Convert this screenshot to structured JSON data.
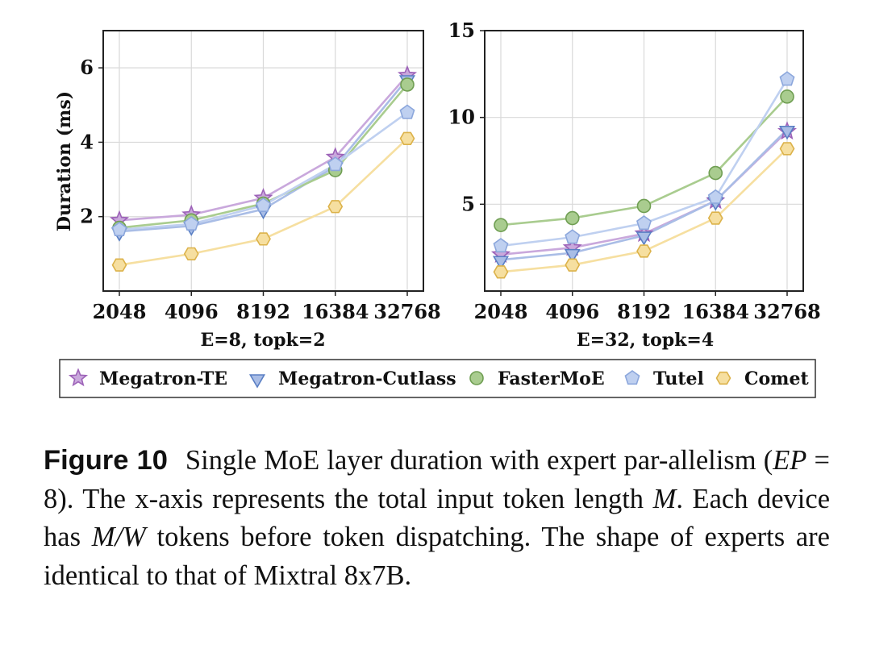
{
  "legend": {
    "entries": [
      {
        "name": "Megatron-TE",
        "marker": "star",
        "stroke": "#9d62b8",
        "fill": "#c9a8dc"
      },
      {
        "name": "Megatron-Cutlass",
        "marker": "triangle-down",
        "stroke": "#5a7fc4",
        "fill": "#a9bde6"
      },
      {
        "name": "FasterMoE",
        "marker": "circle",
        "stroke": "#6f9e52",
        "fill": "#a9cc8f"
      },
      {
        "name": "Tutel",
        "marker": "pentagon",
        "stroke": "#8ca7dc",
        "fill": "#bfd0f0"
      },
      {
        "name": "Comet",
        "marker": "hexagon",
        "stroke": "#dcb24a",
        "fill": "#f6dfa0"
      }
    ]
  },
  "chart_data": [
    {
      "type": "line",
      "title": "",
      "xlabel": "E=8, topk=2",
      "ylabel": "Duration (ms)",
      "categories": [
        "2048",
        "4096",
        "8192",
        "16384",
        "32768"
      ],
      "ylim": [
        0,
        7
      ],
      "yticks": [
        "2",
        "4",
        "6"
      ],
      "ytick_values": [
        2,
        4,
        6
      ],
      "series": [
        {
          "name": "Megatron-TE",
          "values": [
            1.9,
            2.05,
            2.5,
            3.6,
            5.8
          ]
        },
        {
          "name": "Megatron-Cutlass",
          "values": [
            1.6,
            1.75,
            2.2,
            3.35,
            5.7
          ]
        },
        {
          "name": "FasterMoE",
          "values": [
            1.7,
            1.9,
            2.35,
            3.25,
            5.55
          ]
        },
        {
          "name": "Tutel",
          "values": [
            1.65,
            1.8,
            2.3,
            3.4,
            4.8
          ]
        },
        {
          "name": "Comet",
          "values": [
            0.7,
            1.0,
            1.4,
            2.27,
            4.1
          ]
        }
      ]
    },
    {
      "type": "line",
      "title": "",
      "xlabel": "E=32, topk=4",
      "ylabel": "",
      "categories": [
        "2048",
        "4096",
        "8192",
        "16384",
        "32768"
      ],
      "ylim": [
        0,
        15
      ],
      "yticks": [
        "5",
        "10",
        "15"
      ],
      "ytick_values": [
        5,
        10,
        15
      ],
      "series": [
        {
          "name": "Megatron-TE",
          "values": [
            2.1,
            2.5,
            3.3,
            5.2,
            9.2
          ]
        },
        {
          "name": "Megatron-Cutlass",
          "values": [
            1.8,
            2.2,
            3.2,
            5.2,
            9.3
          ]
        },
        {
          "name": "FasterMoE",
          "values": [
            3.8,
            4.2,
            4.9,
            6.8,
            11.2
          ]
        },
        {
          "name": "Tutel",
          "values": [
            2.6,
            3.1,
            3.9,
            5.4,
            12.2
          ]
        },
        {
          "name": "Comet",
          "values": [
            1.1,
            1.5,
            2.3,
            4.2,
            8.2
          ]
        }
      ]
    }
  ],
  "caption": {
    "label": "Figure 10",
    "t1": "Single MoE layer duration with expert par-allelism (",
    "m1": "EP",
    "t2": " = 8). The x-axis represents the total input token length ",
    "m2": "M",
    "t3": ". Each device has ",
    "m3": "M/W",
    "t4": " tokens before token dispatching. The shape of experts are identical to that of Mixtral 8x7B."
  }
}
